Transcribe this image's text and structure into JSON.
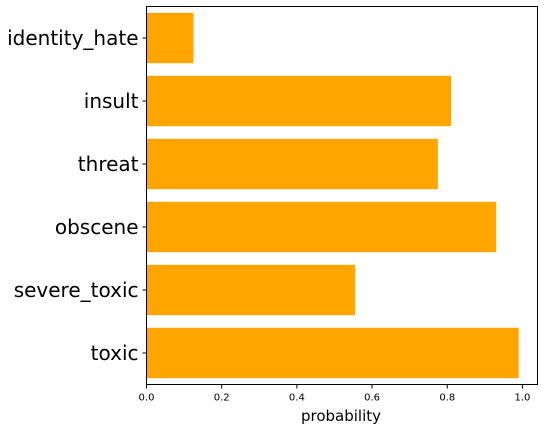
{
  "chart_data": {
    "type": "bar",
    "orientation": "horizontal",
    "categories": [
      "toxic",
      "severe_toxic",
      "obscene",
      "threat",
      "insult",
      "identity_hate"
    ],
    "values": [
      0.99,
      0.555,
      0.93,
      0.775,
      0.81,
      0.125
    ],
    "xlabel": "probability",
    "ylabel": "",
    "xlim": [
      0,
      1.04
    ],
    "xticks": [
      0.0,
      0.2,
      0.4,
      0.6,
      0.8,
      1.0
    ],
    "xtick_labels": [
      "0.0",
      "0.2",
      "0.4",
      "0.6",
      "0.8",
      "1.0"
    ],
    "bar_color": "#FFA500",
    "grid": false,
    "legend": "none"
  }
}
